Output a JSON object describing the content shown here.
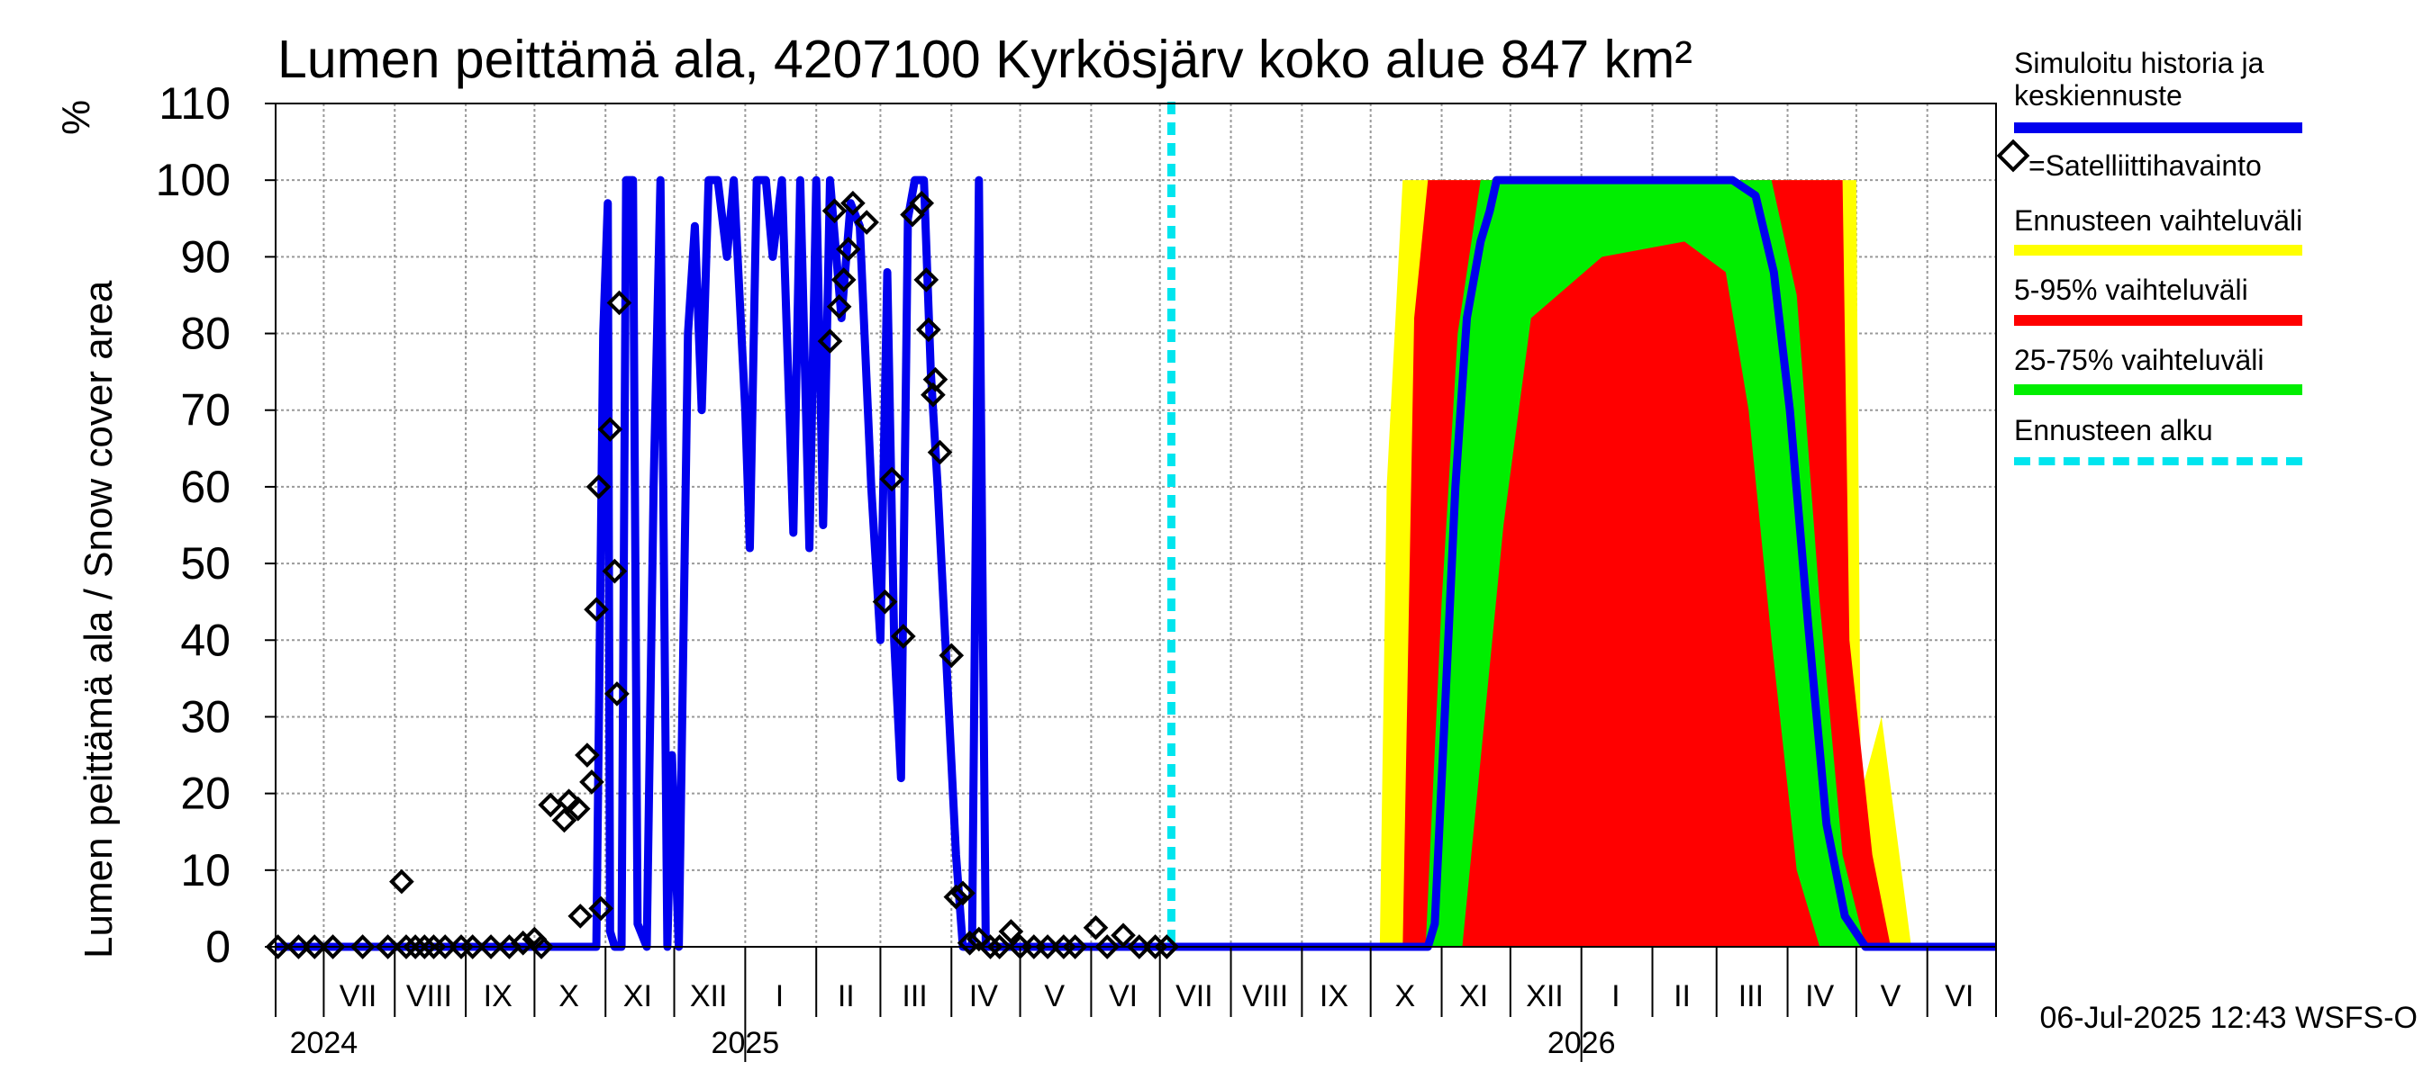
{
  "chart_data": {
    "type": "area",
    "title": "Lumen peittämä ala, 4207100 Kyrkösjärv koko alue 847 km²",
    "ylabel": "Lumen peittämä ala / Snow cover area",
    "yunit": "%",
    "ylim": [
      0,
      110
    ],
    "yticks": [
      0,
      10,
      20,
      30,
      40,
      50,
      60,
      70,
      80,
      90,
      100,
      110
    ],
    "xlim": [
      "2024-06-10",
      "2026-07-01"
    ],
    "month_labels": [
      {
        "label": "VII",
        "date": "2024-07-16"
      },
      {
        "label": "VIII",
        "date": "2024-08-16"
      },
      {
        "label": "IX",
        "date": "2024-09-15"
      },
      {
        "label": "X",
        "date": "2024-10-16"
      },
      {
        "label": "XI",
        "date": "2024-11-15"
      },
      {
        "label": "XII",
        "date": "2024-12-16"
      },
      {
        "label": "I",
        "date": "2025-01-16"
      },
      {
        "label": "II",
        "date": "2025-02-14"
      },
      {
        "label": "III",
        "date": "2025-03-16"
      },
      {
        "label": "IV",
        "date": "2025-04-15"
      },
      {
        "label": "V",
        "date": "2025-05-16"
      },
      {
        "label": "VI",
        "date": "2025-06-15"
      },
      {
        "label": "VII",
        "date": "2025-07-16"
      },
      {
        "label": "VIII",
        "date": "2025-08-16"
      },
      {
        "label": "IX",
        "date": "2025-09-15"
      },
      {
        "label": "X",
        "date": "2025-10-16"
      },
      {
        "label": "XI",
        "date": "2025-11-15"
      },
      {
        "label": "XII",
        "date": "2025-12-16"
      },
      {
        "label": "I",
        "date": "2026-01-16"
      },
      {
        "label": "II",
        "date": "2026-02-14"
      },
      {
        "label": "III",
        "date": "2026-03-16"
      },
      {
        "label": "IV",
        "date": "2026-04-15"
      },
      {
        "label": "V",
        "date": "2026-05-16"
      },
      {
        "label": "VI",
        "date": "2026-06-15"
      }
    ],
    "year_labels": [
      {
        "label": "2024",
        "date": "2024-07-01"
      },
      {
        "label": "2025",
        "date": "2025-01-01"
      },
      {
        "label": "2026",
        "date": "2026-01-01"
      }
    ],
    "forecast_start": "2025-07-06",
    "series": [
      {
        "name": "Simuloitu historia ja keskiennuste",
        "color": "#0000ee",
        "style": "line",
        "points": [
          [
            "2024-06-10",
            0
          ],
          [
            "2024-10-28",
            0
          ],
          [
            "2024-10-31",
            80
          ],
          [
            "2024-11-02",
            97
          ],
          [
            "2024-11-03",
            2
          ],
          [
            "2024-11-05",
            0
          ],
          [
            "2024-11-08",
            0
          ],
          [
            "2024-11-10",
            100
          ],
          [
            "2024-11-13",
            100
          ],
          [
            "2024-11-15",
            3
          ],
          [
            "2024-11-19",
            0
          ],
          [
            "2024-11-22",
            60
          ],
          [
            "2024-11-25",
            100
          ],
          [
            "2024-11-28",
            0
          ],
          [
            "2024-11-30",
            25
          ],
          [
            "2024-12-03",
            0
          ],
          [
            "2024-12-07",
            80
          ],
          [
            "2024-12-10",
            94
          ],
          [
            "2024-12-13",
            70
          ],
          [
            "2024-12-16",
            100
          ],
          [
            "2024-12-20",
            100
          ],
          [
            "2024-12-24",
            90
          ],
          [
            "2024-12-27",
            100
          ],
          [
            "2025-01-01",
            70
          ],
          [
            "2025-01-03",
            52
          ],
          [
            "2025-01-06",
            100
          ],
          [
            "2025-01-10",
            100
          ],
          [
            "2025-01-13",
            90
          ],
          [
            "2025-01-17",
            100
          ],
          [
            "2025-01-22",
            54
          ],
          [
            "2025-01-25",
            100
          ],
          [
            "2025-01-29",
            52
          ],
          [
            "2025-02-01",
            100
          ],
          [
            "2025-02-04",
            55
          ],
          [
            "2025-02-07",
            100
          ],
          [
            "2025-02-12",
            82
          ],
          [
            "2025-02-16",
            97
          ],
          [
            "2025-02-20",
            94
          ],
          [
            "2025-02-25",
            60
          ],
          [
            "2025-03-01",
            40
          ],
          [
            "2025-03-04",
            88
          ],
          [
            "2025-03-07",
            40
          ],
          [
            "2025-03-10",
            22
          ],
          [
            "2025-03-13",
            95
          ],
          [
            "2025-03-16",
            100
          ],
          [
            "2025-03-20",
            100
          ],
          [
            "2025-03-23",
            75
          ],
          [
            "2025-03-26",
            60
          ],
          [
            "2025-03-30",
            36
          ],
          [
            "2025-04-03",
            12
          ],
          [
            "2025-04-06",
            0
          ],
          [
            "2025-04-10",
            0
          ],
          [
            "2025-04-13",
            100
          ],
          [
            "2025-04-16",
            0
          ],
          [
            "2025-07-06",
            0
          ],
          [
            "2025-10-26",
            0
          ],
          [
            "2025-10-29",
            3
          ],
          [
            "2025-11-02",
            28
          ],
          [
            "2025-11-07",
            60
          ],
          [
            "2025-11-12",
            82
          ],
          [
            "2025-11-18",
            92
          ],
          [
            "2025-11-22",
            96
          ],
          [
            "2025-11-25",
            100
          ],
          [
            "2026-03-08",
            100
          ],
          [
            "2026-03-18",
            98
          ],
          [
            "2026-03-26",
            88
          ],
          [
            "2026-04-02",
            70
          ],
          [
            "2026-04-10",
            42
          ],
          [
            "2026-04-18",
            16
          ],
          [
            "2026-04-26",
            4
          ],
          [
            "2026-05-05",
            0
          ],
          [
            "2026-07-01",
            0
          ]
        ]
      },
      {
        "name": "=Satelliittihavainto",
        "color": "#000000",
        "style": "marker",
        "points": [
          [
            "2024-06-11",
            0
          ],
          [
            "2024-06-20",
            0
          ],
          [
            "2024-06-27",
            0
          ],
          [
            "2024-07-05",
            0
          ],
          [
            "2024-07-18",
            0
          ],
          [
            "2024-07-29",
            0
          ],
          [
            "2024-08-04",
            8.5
          ],
          [
            "2024-08-06",
            0
          ],
          [
            "2024-08-10",
            0
          ],
          [
            "2024-08-14",
            0
          ],
          [
            "2024-08-18",
            0
          ],
          [
            "2024-08-23",
            0
          ],
          [
            "2024-08-30",
            0
          ],
          [
            "2024-09-04",
            0
          ],
          [
            "2024-09-12",
            0
          ],
          [
            "2024-09-20",
            0
          ],
          [
            "2024-09-26",
            0.5
          ],
          [
            "2024-10-01",
            1
          ],
          [
            "2024-10-04",
            0
          ],
          [
            "2024-10-08",
            18.5
          ],
          [
            "2024-10-14",
            16.5
          ],
          [
            "2024-10-16",
            19
          ],
          [
            "2024-10-20",
            18
          ],
          [
            "2024-10-21",
            4
          ],
          [
            "2024-10-24",
            25
          ],
          [
            "2024-10-26",
            21.5
          ],
          [
            "2024-10-28",
            44
          ],
          [
            "2024-10-29",
            60
          ],
          [
            "2024-10-30",
            5
          ],
          [
            "2024-11-03",
            67.5
          ],
          [
            "2024-11-05",
            49
          ],
          [
            "2024-11-06",
            33
          ],
          [
            "2024-11-07",
            84
          ],
          [
            "2025-02-07",
            79
          ],
          [
            "2025-02-09",
            96
          ],
          [
            "2025-02-11",
            83.5
          ],
          [
            "2025-02-13",
            87
          ],
          [
            "2025-02-15",
            91
          ],
          [
            "2025-02-17",
            97
          ],
          [
            "2025-02-23",
            94.5
          ],
          [
            "2025-03-03",
            45
          ],
          [
            "2025-03-06",
            61
          ],
          [
            "2025-03-11",
            40.5
          ],
          [
            "2025-03-15",
            95.5
          ],
          [
            "2025-03-19",
            97
          ],
          [
            "2025-03-21",
            87
          ],
          [
            "2025-03-22",
            80.5
          ],
          [
            "2025-03-24",
            72
          ],
          [
            "2025-03-25",
            74
          ],
          [
            "2025-03-27",
            64.5
          ],
          [
            "2025-04-01",
            38
          ],
          [
            "2025-04-03",
            6.5
          ],
          [
            "2025-04-06",
            7
          ],
          [
            "2025-04-09",
            0.5
          ],
          [
            "2025-04-13",
            1
          ],
          [
            "2025-04-18",
            0
          ],
          [
            "2025-04-22",
            0
          ],
          [
            "2025-04-27",
            2
          ],
          [
            "2025-05-01",
            0
          ],
          [
            "2025-05-07",
            0
          ],
          [
            "2025-05-13",
            0
          ],
          [
            "2025-05-20",
            0
          ],
          [
            "2025-05-25",
            0
          ],
          [
            "2025-06-03",
            2.5
          ],
          [
            "2025-06-08",
            0
          ],
          [
            "2025-06-15",
            1.5
          ],
          [
            "2025-06-22",
            0
          ],
          [
            "2025-06-29",
            0
          ],
          [
            "2025-07-04",
            0
          ]
        ]
      }
    ],
    "bands": [
      {
        "name": "Ennusteen vaihteluväli",
        "color": "#ffff00",
        "upper": [
          [
            "2025-10-05",
            0
          ],
          [
            "2025-10-08",
            60
          ],
          [
            "2025-10-15",
            100
          ],
          [
            "2026-05-01",
            100
          ],
          [
            "2026-05-03",
            20
          ],
          [
            "2026-05-12",
            30
          ],
          [
            "2026-05-25",
            0
          ]
        ],
        "lower": [
          [
            "2025-10-05",
            0
          ],
          [
            "2026-05-25",
            0
          ]
        ]
      },
      {
        "name": "5-95% vaihteluväli",
        "color": "#ff0000",
        "upper": [
          [
            "2025-10-15",
            0
          ],
          [
            "2025-10-20",
            82
          ],
          [
            "2025-10-26",
            100
          ],
          [
            "2026-04-25",
            100
          ],
          [
            "2026-04-28",
            40
          ],
          [
            "2026-05-08",
            12
          ],
          [
            "2026-05-16",
            0
          ]
        ],
        "lower": [
          [
            "2025-10-15",
            0
          ],
          [
            "2026-05-16",
            0
          ]
        ]
      },
      {
        "name": "25-75% vaihteluväli",
        "color": "#00ee00",
        "upper": [
          [
            "2025-10-25",
            0
          ],
          [
            "2025-11-01",
            45
          ],
          [
            "2025-11-08",
            80
          ],
          [
            "2025-11-18",
            100
          ],
          [
            "2026-03-25",
            100
          ],
          [
            "2026-04-05",
            85
          ],
          [
            "2026-04-15",
            45
          ],
          [
            "2026-04-25",
            12
          ],
          [
            "2026-05-05",
            0
          ]
        ],
        "lower": [
          [
            "2025-11-10",
            0
          ],
          [
            "2025-11-28",
            55
          ],
          [
            "2025-12-10",
            82
          ],
          [
            "2026-01-10",
            90
          ],
          [
            "2026-02-15",
            92
          ],
          [
            "2026-03-05",
            88
          ],
          [
            "2026-03-15",
            70
          ],
          [
            "2026-03-25",
            40
          ],
          [
            "2026-04-05",
            10
          ],
          [
            "2026-04-15",
            0
          ]
        ]
      }
    ],
    "legend_placement": "right",
    "grid": true
  },
  "legend": {
    "sim_label_line1": "Simuloitu historia ja",
    "sim_label_line2": "keskiennuste",
    "sat_label": "=Satelliittihavainto",
    "range_label": "Ennusteen vaihteluväli",
    "p5_95_label": "5-95% vaihteluväli",
    "p25_75_label": "25-75% vaihteluväli",
    "start_label": "Ennusteen alku"
  },
  "footer": {
    "timestamp": "06-Jul-2025 12:43 WSFS-O"
  }
}
